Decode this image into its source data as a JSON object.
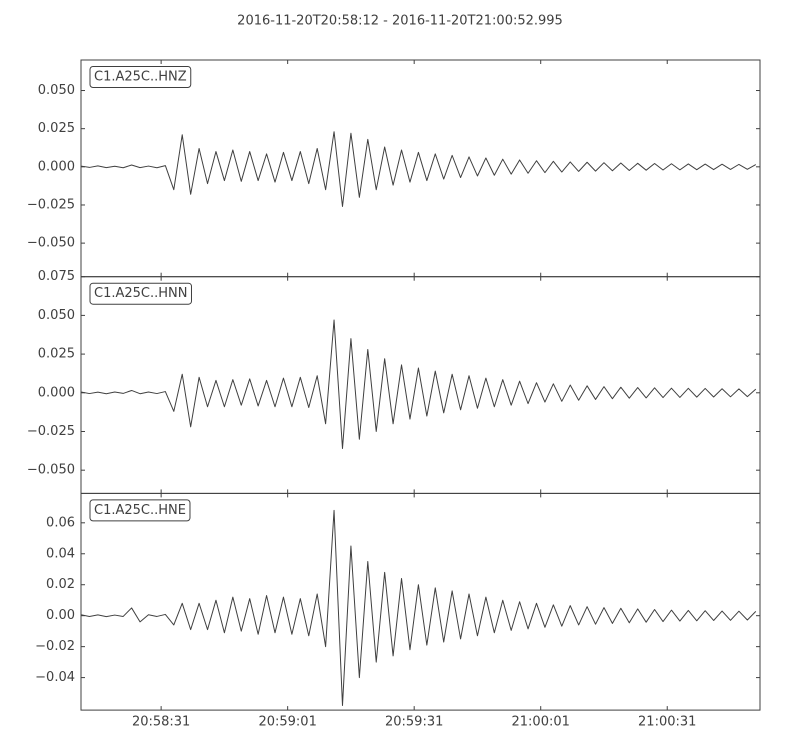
{
  "title": "2016-11-20T20:58:12  -  2016-11-20T21:00:52.995",
  "chart_data": [
    {
      "type": "line",
      "title": "C1.A25C..HNZ",
      "color": "#404040",
      "x": [
        0,
        2,
        4,
        6,
        8,
        10,
        12,
        14,
        16,
        18,
        20,
        22,
        24,
        26,
        28,
        30,
        32,
        34,
        36,
        38,
        40,
        42,
        44,
        46,
        48,
        50,
        52,
        54,
        56,
        58,
        60,
        62,
        64,
        66,
        68,
        70,
        72,
        74,
        76,
        78,
        80,
        82,
        84,
        86,
        88,
        90,
        92,
        94,
        96,
        98,
        100,
        102,
        104,
        106,
        108,
        110,
        112,
        114,
        116,
        118,
        120,
        122,
        124,
        126,
        128,
        130,
        132,
        134,
        136,
        138,
        140,
        142,
        144,
        146,
        148,
        150,
        152,
        154,
        156,
        158,
        160
      ],
      "values": [
        0.0005,
        -0.0004,
        0.0006,
        -0.0005,
        0.0004,
        -0.0006,
        0.0012,
        -0.0005,
        0.0005,
        -0.0006,
        0.0008,
        -0.015,
        0.021,
        -0.018,
        0.012,
        -0.011,
        0.01,
        -0.009,
        0.011,
        -0.0095,
        0.01,
        -0.009,
        0.0085,
        -0.01,
        0.0095,
        -0.009,
        0.01,
        -0.011,
        0.012,
        -0.015,
        0.023,
        -0.026,
        0.022,
        -0.02,
        0.018,
        -0.015,
        0.013,
        -0.012,
        0.011,
        -0.01,
        0.0095,
        -0.009,
        0.0085,
        -0.008,
        0.0075,
        -0.007,
        0.0065,
        -0.006,
        0.0058,
        -0.0055,
        0.005,
        -0.0048,
        0.0045,
        -0.0042,
        0.004,
        -0.0038,
        0.0036,
        -0.0034,
        0.0032,
        -0.003,
        0.003,
        -0.0028,
        0.0027,
        -0.0026,
        0.0025,
        -0.0024,
        0.0023,
        -0.0022,
        0.0022,
        -0.0021,
        0.002,
        -0.002,
        0.0019,
        -0.0019,
        0.0018,
        -0.0018,
        0.0017,
        -0.0017,
        0.0016,
        -0.0016,
        0.0015
      ],
      "xlim": [
        0,
        160.995
      ],
      "xticks": [
        19,
        49,
        79,
        109,
        139
      ],
      "ylim": [
        -0.072,
        0.07
      ],
      "yticks": [
        {
          "value": -0.05,
          "label": "−0.050"
        },
        {
          "value": -0.025,
          "label": "−0.025"
        },
        {
          "value": 0,
          "label": "0.000"
        },
        {
          "value": 0.025,
          "label": "0.025"
        },
        {
          "value": 0.05,
          "label": "0.050"
        }
      ]
    },
    {
      "type": "line",
      "title": "C1.A25C..HNN",
      "color": "#404040",
      "x": [
        0,
        2,
        4,
        6,
        8,
        10,
        12,
        14,
        16,
        18,
        20,
        22,
        24,
        26,
        28,
        30,
        32,
        34,
        36,
        38,
        40,
        42,
        44,
        46,
        48,
        50,
        52,
        54,
        56,
        58,
        60,
        62,
        64,
        66,
        68,
        70,
        72,
        74,
        76,
        78,
        80,
        82,
        84,
        86,
        88,
        90,
        92,
        94,
        96,
        98,
        100,
        102,
        104,
        106,
        108,
        110,
        112,
        114,
        116,
        118,
        120,
        122,
        124,
        126,
        128,
        130,
        132,
        134,
        136,
        138,
        140,
        142,
        144,
        146,
        148,
        150,
        152,
        154,
        156,
        158,
        160
      ],
      "values": [
        0.0005,
        -0.0005,
        0.0004,
        -0.0006,
        0.0005,
        -0.0004,
        0.0015,
        -0.0006,
        0.0005,
        -0.0005,
        0.0008,
        -0.012,
        0.012,
        -0.022,
        0.01,
        -0.009,
        0.008,
        -0.009,
        0.0085,
        -0.008,
        0.009,
        -0.0085,
        0.008,
        -0.009,
        0.0095,
        -0.009,
        0.01,
        -0.0095,
        0.011,
        -0.02,
        0.047,
        -0.036,
        0.035,
        -0.03,
        0.028,
        -0.025,
        0.022,
        -0.02,
        0.018,
        -0.017,
        0.016,
        -0.015,
        0.014,
        -0.013,
        0.012,
        -0.011,
        0.011,
        -0.01,
        0.0095,
        -0.009,
        0.0085,
        -0.008,
        0.0075,
        -0.007,
        0.0065,
        -0.006,
        0.0058,
        -0.0055,
        0.005,
        -0.0048,
        0.0045,
        -0.0043,
        0.004,
        -0.0038,
        0.0036,
        -0.0035,
        0.0034,
        -0.0033,
        0.0032,
        -0.0031,
        0.003,
        -0.003,
        0.0029,
        -0.0028,
        0.0028,
        -0.0027,
        0.0026,
        -0.0026,
        0.0025,
        -0.0025,
        0.0024
      ],
      "xlim": [
        0,
        160.995
      ],
      "xticks": [
        19,
        49,
        79,
        109,
        139
      ],
      "ylim": [
        -0.065,
        0.075
      ],
      "yticks": [
        {
          "value": -0.05,
          "label": "−0.050"
        },
        {
          "value": -0.025,
          "label": "−0.025"
        },
        {
          "value": 0,
          "label": "0.000"
        },
        {
          "value": 0.025,
          "label": "0.025"
        },
        {
          "value": 0.05,
          "label": "0.050"
        },
        {
          "value": 0.075,
          "label": "0.075"
        }
      ]
    },
    {
      "type": "line",
      "title": "C1.A25C..HNE",
      "color": "#404040",
      "x": [
        0,
        2,
        4,
        6,
        8,
        10,
        12,
        14,
        16,
        18,
        20,
        22,
        24,
        26,
        28,
        30,
        32,
        34,
        36,
        38,
        40,
        42,
        44,
        46,
        48,
        50,
        52,
        54,
        56,
        58,
        60,
        62,
        64,
        66,
        68,
        70,
        72,
        74,
        76,
        78,
        80,
        82,
        84,
        86,
        88,
        90,
        92,
        94,
        96,
        98,
        100,
        102,
        104,
        106,
        108,
        110,
        112,
        114,
        116,
        118,
        120,
        122,
        124,
        126,
        128,
        130,
        132,
        134,
        136,
        138,
        140,
        142,
        144,
        146,
        148,
        150,
        152,
        154,
        156,
        158,
        160
      ],
      "values": [
        0.0006,
        -0.0005,
        0.0005,
        -0.0006,
        0.0004,
        -0.0005,
        0.005,
        -0.004,
        0.0006,
        -0.0005,
        0.0008,
        -0.006,
        0.008,
        -0.009,
        0.008,
        -0.009,
        0.01,
        -0.011,
        0.012,
        -0.01,
        0.011,
        -0.012,
        0.013,
        -0.011,
        0.012,
        -0.012,
        0.011,
        -0.013,
        0.014,
        -0.02,
        0.068,
        -0.058,
        0.045,
        -0.04,
        0.035,
        -0.03,
        0.028,
        -0.026,
        0.024,
        -0.022,
        0.02,
        -0.019,
        0.018,
        -0.017,
        0.016,
        -0.015,
        0.014,
        -0.013,
        0.012,
        -0.011,
        0.01,
        -0.0095,
        0.009,
        -0.0085,
        0.008,
        -0.0075,
        0.007,
        -0.0068,
        0.0065,
        -0.006,
        0.0058,
        -0.0055,
        0.0052,
        -0.005,
        0.0048,
        -0.0046,
        0.0044,
        -0.0042,
        0.004,
        -0.0038,
        0.0036,
        -0.0035,
        0.0034,
        -0.0033,
        0.0032,
        -0.0031,
        0.003,
        -0.003,
        0.0029,
        -0.0028,
        0.0028
      ],
      "xlim": [
        0,
        160.995
      ],
      "xticks": [
        {
          "value": 19,
          "label": "20:58:31"
        },
        {
          "value": 49,
          "label": "20:59:01"
        },
        {
          "value": 79,
          "label": "20:59:31"
        },
        {
          "value": 109,
          "label": "21:00:01"
        },
        {
          "value": 139,
          "label": "21:00:31"
        }
      ],
      "ylim": [
        -0.061,
        0.079
      ],
      "yticks": [
        {
          "value": -0.04,
          "label": "−0.04"
        },
        {
          "value": -0.02,
          "label": "−0.02"
        },
        {
          "value": 0,
          "label": "0.00"
        },
        0.02,
        0.04,
        0.06
      ]
    }
  ]
}
